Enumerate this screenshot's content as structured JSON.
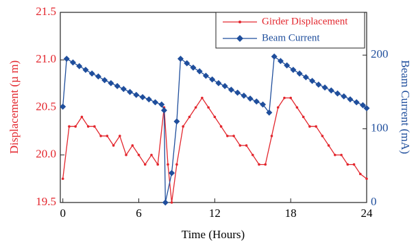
{
  "chart_data": {
    "type": "line",
    "xlabel": "Time (Hours)",
    "ylabel": "Displacement (µ m)",
    "y2label": "Beam Current (mA)",
    "xlim": [
      -0.2,
      24
    ],
    "xticks": [
      0,
      6,
      12,
      18,
      24
    ],
    "ylim": [
      19.5,
      21.5
    ],
    "yticks": [
      19.5,
      {
        "value": 20,
        "label": "20.0"
      },
      20.5,
      {
        "value": 21,
        "label": "21.0"
      },
      21.5
    ],
    "y2lim": [
      0,
      258
    ],
    "y2ticks": [
      0,
      100,
      200
    ],
    "legend": "upper right",
    "series": [
      {
        "name": "Girder Displacement",
        "color": "#e3262d",
        "x": [
          0,
          0.5,
          1,
          1.5,
          2,
          2.5,
          3,
          3.5,
          4,
          4.5,
          5,
          5.5,
          6,
          6.5,
          7,
          7.5,
          8,
          8.3,
          8.6,
          9,
          9.5,
          10,
          10.5,
          11,
          11.5,
          12,
          12.5,
          13,
          13.5,
          14,
          14.5,
          15,
          15.5,
          16,
          16.5,
          17,
          17.5,
          18,
          18.5,
          19,
          19.5,
          20,
          20.5,
          21,
          21.5,
          22,
          22.5,
          23,
          23.5,
          24
        ],
        "values": [
          19.75,
          20.3,
          20.3,
          20.4,
          20.3,
          20.3,
          20.2,
          20.2,
          20.1,
          20.2,
          20.0,
          20.1,
          20.0,
          19.9,
          20.0,
          19.9,
          20.5,
          19.9,
          19.5,
          19.9,
          20.3,
          20.4,
          20.5,
          20.6,
          20.5,
          20.4,
          20.3,
          20.2,
          20.2,
          20.1,
          20.1,
          20.0,
          19.9,
          19.9,
          20.2,
          20.5,
          20.6,
          20.6,
          20.5,
          20.4,
          20.3,
          20.3,
          20.2,
          20.1,
          20.0,
          20.0,
          19.9,
          19.9,
          19.8,
          19.75
        ]
      },
      {
        "name": "Beam Current",
        "color": "#1f4e9c",
        "axis": "y2",
        "x": [
          0,
          0.3,
          0.8,
          1.3,
          1.8,
          2.3,
          2.8,
          3.3,
          3.8,
          4.3,
          4.8,
          5.3,
          5.8,
          6.3,
          6.8,
          7.3,
          7.8,
          8.0,
          8.1,
          8.6,
          9.0,
          9.3,
          9.8,
          10.3,
          10.8,
          11.3,
          11.8,
          12.3,
          12.8,
          13.3,
          13.8,
          14.3,
          14.8,
          15.3,
          15.8,
          16.3,
          16.7,
          17.2,
          17.7,
          18.2,
          18.7,
          19.2,
          19.7,
          20.2,
          20.7,
          21.2,
          21.7,
          22.2,
          22.7,
          23.2,
          23.7,
          24.0
        ],
        "values": [
          130,
          195,
          190,
          185,
          180,
          175,
          171,
          166,
          162,
          158,
          154,
          150,
          146,
          143,
          140,
          136,
          133,
          125,
          0,
          40,
          110,
          195,
          189,
          183,
          178,
          172,
          167,
          162,
          158,
          153,
          149,
          145,
          141,
          137,
          133,
          122,
          198,
          192,
          186,
          180,
          175,
          170,
          165,
          160,
          156,
          152,
          148,
          144,
          140,
          136,
          132,
          128
        ]
      }
    ]
  }
}
